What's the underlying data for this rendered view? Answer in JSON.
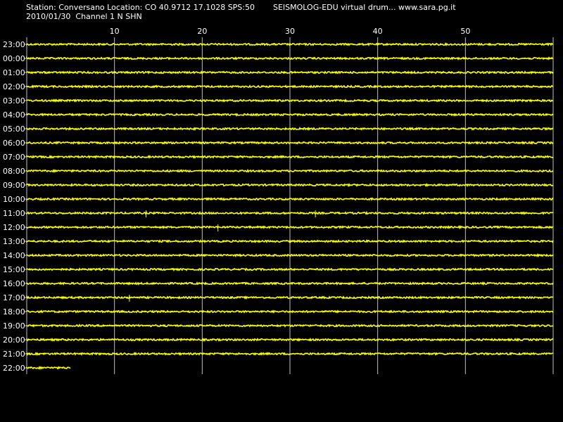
{
  "header": {
    "station_line": "Station: Conversano Location: CO 40.9712 17.1028 SPS:50",
    "date_line": "2010/01/30  Channel 1 N SHN",
    "app_line": "SEISMOLOG-EDU virtual drum... www.sara.pg.it"
  },
  "chart_data": {
    "type": "line",
    "title": "",
    "xlabel": "",
    "ylabel": "",
    "x_unit": "minutes",
    "xlim": [
      0,
      60
    ],
    "x_ticks": [
      10,
      20,
      30,
      40,
      50
    ],
    "x_tick_labels": [
      "10",
      "20",
      "30",
      "40",
      "50"
    ],
    "grid": true,
    "rows": [
      "23:00",
      "00:00",
      "01:00",
      "02:00",
      "03:00",
      "04:00",
      "05:00",
      "06:00",
      "07:00",
      "08:00",
      "09:00",
      "10:00",
      "11:00",
      "12:00",
      "13:00",
      "14:00",
      "15:00",
      "16:00",
      "17:00",
      "18:00",
      "19:00",
      "20:00",
      "21:00",
      "22:00"
    ],
    "row_end_minute": [
      60,
      60,
      60,
      60,
      60,
      60,
      60,
      60,
      60,
      60,
      60,
      60,
      60,
      60,
      60,
      60,
      60,
      60,
      60,
      60,
      60,
      60,
      60,
      5
    ],
    "events": [
      {
        "row": "11:00",
        "minute": 13.6
      },
      {
        "row": "11:00",
        "minute": 32.9
      },
      {
        "row": "12:00",
        "minute": 21.8
      },
      {
        "row": "17:00",
        "minute": 11.7
      }
    ],
    "trace_color": "#ffff00",
    "background_color": "#000000",
    "grid_color": "#c0c0c0"
  }
}
